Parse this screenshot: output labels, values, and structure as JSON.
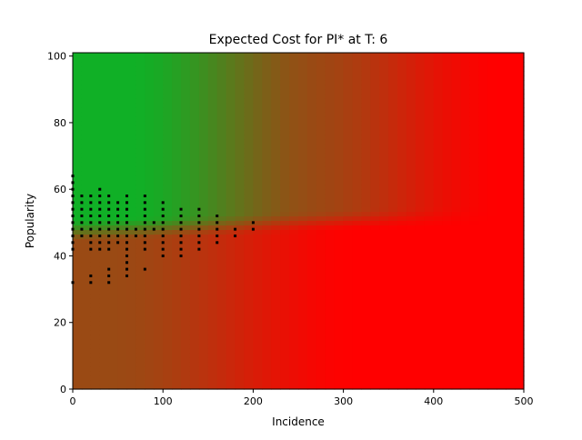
{
  "chart_data": {
    "type": "heatmap",
    "title": "Expected Cost for PI* at T: 6",
    "xlabel": "Incidence",
    "ylabel": "Popularity",
    "xlim": [
      0,
      500
    ],
    "ylim": [
      0,
      101
    ],
    "x_ticks": [
      0,
      100,
      200,
      300,
      400,
      500
    ],
    "y_ticks": [
      0,
      20,
      40,
      60,
      80,
      100
    ],
    "x_tick_labels": [
      "0",
      "100",
      "200",
      "300",
      "400",
      "500"
    ],
    "y_tick_labels": [
      "0",
      "20",
      "40",
      "60",
      "80",
      "100"
    ],
    "grid": false,
    "legend": "none",
    "colors": {
      "low_cost": "#10b026",
      "mid_cost": "#9a4a14",
      "high_cost": "#ff0000",
      "points": "#000000"
    },
    "background_regions": [
      {
        "description_value": "boundary popularity",
        "popularity_at_incidence_0": 47,
        "popularity_at_incidence_500": 52
      },
      {
        "incidence_fade_to_red_below_boundary": [
          40,
          320
        ]
      },
      {
        "incidence_fade_to_red_above_boundary": [
          150,
          480
        ]
      }
    ],
    "series": [
      {
        "values": [
          [
            0,
            32
          ],
          [
            0,
            42
          ],
          [
            0,
            44
          ],
          [
            0,
            46
          ],
          [
            0,
            48
          ],
          [
            0,
            50
          ],
          [
            0,
            52
          ],
          [
            0,
            54
          ],
          [
            0,
            56
          ],
          [
            0,
            58
          ],
          [
            0,
            60
          ],
          [
            0,
            62
          ],
          [
            0,
            64
          ],
          [
            10,
            46
          ],
          [
            10,
            48
          ],
          [
            10,
            50
          ],
          [
            10,
            52
          ],
          [
            10,
            54
          ],
          [
            10,
            56
          ],
          [
            10,
            58
          ],
          [
            20,
            32
          ],
          [
            20,
            34
          ],
          [
            20,
            42
          ],
          [
            20,
            44
          ],
          [
            20,
            46
          ],
          [
            20,
            48
          ],
          [
            20,
            50
          ],
          [
            20,
            52
          ],
          [
            20,
            54
          ],
          [
            20,
            56
          ],
          [
            20,
            58
          ],
          [
            30,
            42
          ],
          [
            30,
            44
          ],
          [
            30,
            46
          ],
          [
            30,
            48
          ],
          [
            30,
            50
          ],
          [
            30,
            52
          ],
          [
            30,
            54
          ],
          [
            30,
            56
          ],
          [
            30,
            58
          ],
          [
            30,
            60
          ],
          [
            40,
            32
          ],
          [
            40,
            34
          ],
          [
            40,
            36
          ],
          [
            40,
            42
          ],
          [
            40,
            44
          ],
          [
            40,
            46
          ],
          [
            40,
            48
          ],
          [
            40,
            50
          ],
          [
            40,
            52
          ],
          [
            40,
            54
          ],
          [
            40,
            56
          ],
          [
            40,
            58
          ],
          [
            50,
            44
          ],
          [
            50,
            46
          ],
          [
            50,
            48
          ],
          [
            50,
            50
          ],
          [
            50,
            52
          ],
          [
            50,
            54
          ],
          [
            50,
            56
          ],
          [
            60,
            34
          ],
          [
            60,
            36
          ],
          [
            60,
            38
          ],
          [
            60,
            40
          ],
          [
            60,
            42
          ],
          [
            60,
            44
          ],
          [
            60,
            46
          ],
          [
            60,
            48
          ],
          [
            60,
            50
          ],
          [
            60,
            52
          ],
          [
            60,
            54
          ],
          [
            60,
            56
          ],
          [
            60,
            58
          ],
          [
            70,
            46
          ],
          [
            70,
            48
          ],
          [
            80,
            36
          ],
          [
            80,
            42
          ],
          [
            80,
            44
          ],
          [
            80,
            46
          ],
          [
            80,
            48
          ],
          [
            80,
            50
          ],
          [
            80,
            52
          ],
          [
            80,
            54
          ],
          [
            80,
            56
          ],
          [
            80,
            58
          ],
          [
            90,
            48
          ],
          [
            90,
            50
          ],
          [
            100,
            40
          ],
          [
            100,
            42
          ],
          [
            100,
            44
          ],
          [
            100,
            46
          ],
          [
            100,
            48
          ],
          [
            100,
            50
          ],
          [
            100,
            52
          ],
          [
            100,
            54
          ],
          [
            100,
            56
          ],
          [
            120,
            40
          ],
          [
            120,
            42
          ],
          [
            120,
            44
          ],
          [
            120,
            46
          ],
          [
            120,
            48
          ],
          [
            120,
            50
          ],
          [
            120,
            52
          ],
          [
            120,
            54
          ],
          [
            140,
            42
          ],
          [
            140,
            44
          ],
          [
            140,
            46
          ],
          [
            140,
            48
          ],
          [
            140,
            50
          ],
          [
            140,
            52
          ],
          [
            140,
            54
          ],
          [
            160,
            44
          ],
          [
            160,
            46
          ],
          [
            160,
            48
          ],
          [
            160,
            50
          ],
          [
            160,
            52
          ],
          [
            180,
            46
          ],
          [
            180,
            48
          ],
          [
            200,
            48
          ],
          [
            200,
            50
          ]
        ]
      }
    ]
  }
}
